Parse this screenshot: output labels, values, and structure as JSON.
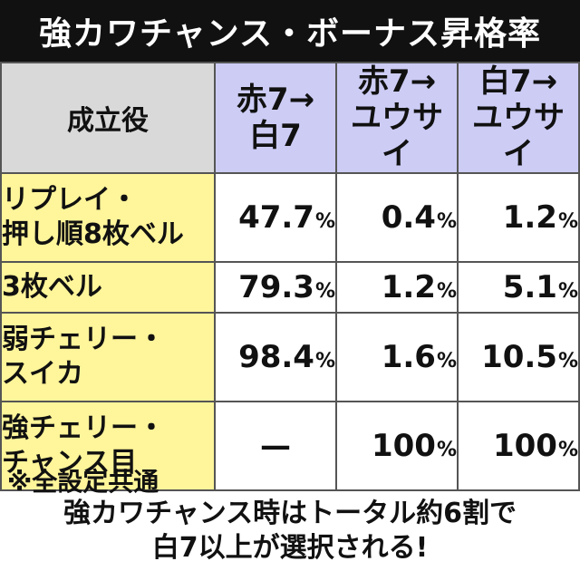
{
  "title": "強カワチャンス・ボーナス昇格率",
  "table": {
    "corner": "成立役",
    "columns": [
      {
        "line1": "赤7→",
        "line2": "白7"
      },
      {
        "line1": "赤7→",
        "line2": "ユウサイ"
      },
      {
        "line1": "白7→",
        "line2": "ユウサイ"
      }
    ],
    "rows": [
      {
        "label1": "リプレイ・",
        "label2": "押し順8枚ベル",
        "v1": "47.7",
        "v2": "0.4",
        "v3": "1.2"
      },
      {
        "label1": "3枚ベル",
        "label2": "",
        "v1": "79.3",
        "v2": "1.2",
        "v3": "5.1"
      },
      {
        "label1": "弱チェリー・",
        "label2": "スイカ",
        "v1": "98.4",
        "v2": "1.6",
        "v3": "10.5"
      },
      {
        "label1": "強チェリー・",
        "label2": "チャンス目",
        "v1": "—",
        "v2": "100",
        "v3": "100"
      }
    ],
    "pct": "%"
  },
  "note": "※全設定共通",
  "summary": {
    "line1": "強カワチャンス時はトータル約6割で",
    "line2": "白7以上が選択される!"
  }
}
